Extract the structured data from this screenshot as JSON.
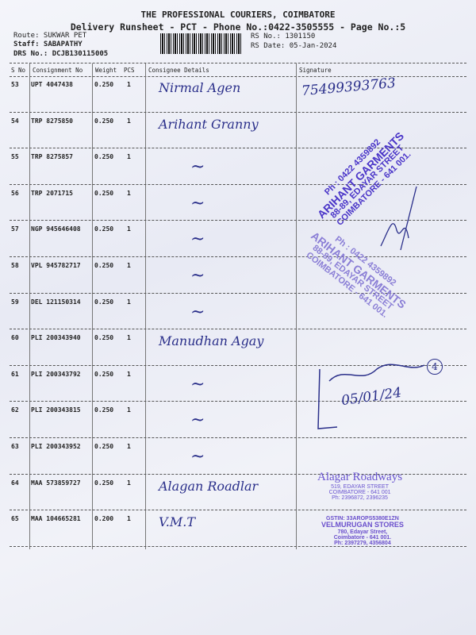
{
  "header": {
    "title": "THE PROFESSIONAL COURIERS, COIMBATORE",
    "subtitle": "Delivery Runsheet - PCT - Phone No.:0422-3505555 - Page No.:5",
    "route": "Route: SUKWAR PET",
    "staff": "Staff: SABAPATHY",
    "drs_no": "DRS No.: DCJB130115005",
    "rs_no": "RS No.: 1301150",
    "rs_date": "RS Date: 05-Jan-2024"
  },
  "table": {
    "columns": [
      "S No",
      "Consignment No",
      "Weight",
      "PCS",
      "Consignee Details",
      "Signature"
    ],
    "rows": [
      {
        "sno": "53",
        "consignment": "UPT 4047438",
        "weight": "0.250",
        "pcs": "1",
        "consignee": "Nirmal Agen"
      },
      {
        "sno": "54",
        "consignment": "TRP 8275850",
        "weight": "0.250",
        "pcs": "1",
        "consignee": "Arihant Granny"
      },
      {
        "sno": "55",
        "consignment": "TRP 8275857",
        "weight": "0.250",
        "pcs": "1",
        "consignee": "~"
      },
      {
        "sno": "56",
        "consignment": "TRP 2071715",
        "weight": "0.250",
        "pcs": "1",
        "consignee": "~"
      },
      {
        "sno": "57",
        "consignment": "NGP 945646408",
        "weight": "0.250",
        "pcs": "1",
        "consignee": "~"
      },
      {
        "sno": "58",
        "consignment": "VPL 945782717",
        "weight": "0.250",
        "pcs": "1",
        "consignee": "~"
      },
      {
        "sno": "59",
        "consignment": "DEL 121150314",
        "weight": "0.250",
        "pcs": "1",
        "consignee": "~"
      },
      {
        "sno": "60",
        "consignment": "PLI 200343940",
        "weight": "0.250",
        "pcs": "1",
        "consignee": "Manudhan Agay"
      },
      {
        "sno": "61",
        "consignment": "PLI 200343792",
        "weight": "0.250",
        "pcs": "1",
        "consignee": "~"
      },
      {
        "sno": "62",
        "consignment": "PLI 200343815",
        "weight": "0.250",
        "pcs": "1",
        "consignee": "~"
      },
      {
        "sno": "63",
        "consignment": "PLI 200343952",
        "weight": "0.250",
        "pcs": "1",
        "consignee": "~"
      },
      {
        "sno": "64",
        "consignment": "MAA 573859727",
        "weight": "0.250",
        "pcs": "1",
        "consignee": "Alagan Roadlar"
      },
      {
        "sno": "65",
        "consignment": "MAA 104665281",
        "weight": "0.200",
        "pcs": "1",
        "consignee": "V.M.T"
      }
    ]
  },
  "handwriting": {
    "sig_top": "75499393763",
    "sig_mid": "05/01/24",
    "circled": "4"
  },
  "stamps": {
    "arihant": [
      "Ph : 0422 4359892",
      "ARIHANT GARMENTS",
      "88-89, EDAYAR STREET",
      "COIMBATORE - 641 001."
    ],
    "alagar": [
      "Alagar Roadways",
      "519, EDAYAR STREET",
      "COIMBATORE - 641 001",
      "Ph: 2396872, 2396235"
    ],
    "velmurugan": [
      "GSTIN: 33AROPS5380E1ZN",
      "VELMURUGAN STORES",
      "780, Edayar Street,",
      "Coimbatore - 641 001.",
      "Ph: 2397279, 4356804"
    ]
  },
  "colors": {
    "ink": "#2a2f8a",
    "stamp": "#4a35c8"
  }
}
